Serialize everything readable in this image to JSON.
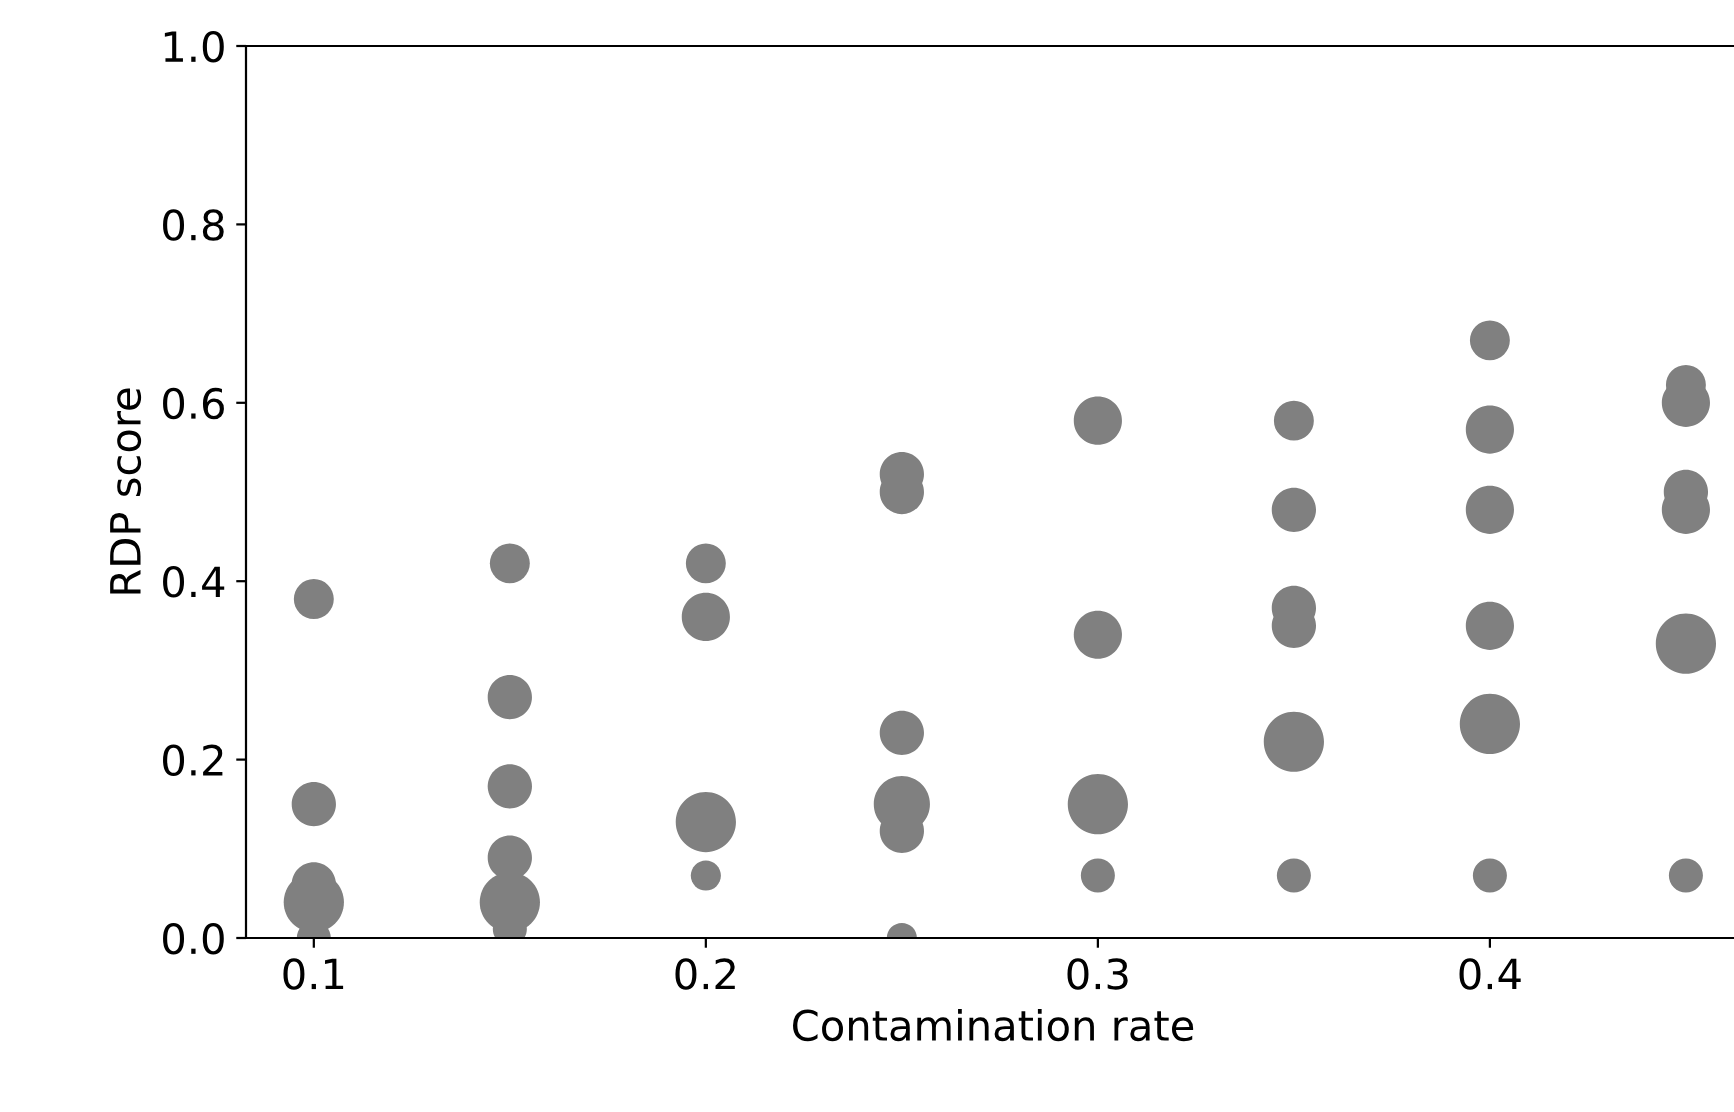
{
  "chart_data": {
    "type": "bubble",
    "xlabel": "Contamination rate",
    "ylabel": "RDP score",
    "xlim": [
      0.0827,
      0.4638
    ],
    "ylim": [
      0.0,
      1.0
    ],
    "xticks": [
      0.1,
      0.2,
      0.3,
      0.4
    ],
    "yticks": [
      {
        "value": 0,
        "label": "0.0"
      },
      0.2,
      0.4,
      0.6,
      0.8,
      {
        "value": 1,
        "label": "1.0"
      }
    ],
    "grid": false,
    "legend": false,
    "marker": "circle",
    "series": [
      {
        "color": "#808080",
        "x": [
          0.1,
          0.1,
          0.1,
          0.1,
          0.1,
          0.15,
          0.15,
          0.15,
          0.15,
          0.15,
          0.15,
          0.2,
          0.2,
          0.2,
          0.2,
          0.25,
          0.25,
          0.25,
          0.25,
          0.25,
          0.25,
          0.3,
          0.3,
          0.3,
          0.3,
          0.35,
          0.35,
          0.35,
          0.35,
          0.35,
          0.35,
          0.4,
          0.4,
          0.4,
          0.4,
          0.4,
          0.4,
          0.45,
          0.45,
          0.45,
          0.45,
          0.45,
          0.45
        ],
        "values": [
          0.38,
          0.15,
          0.06,
          0.04,
          0.0,
          0.42,
          0.27,
          0.17,
          0.09,
          0.04,
          0.01,
          0.42,
          0.36,
          0.13,
          0.07,
          0.52,
          0.5,
          0.23,
          0.15,
          0.12,
          0.0,
          0.58,
          0.34,
          0.15,
          0.07,
          0.58,
          0.48,
          0.37,
          0.35,
          0.22,
          0.07,
          0.67,
          0.57,
          0.48,
          0.35,
          0.24,
          0.07,
          0.62,
          0.6,
          0.5,
          0.48,
          0.33,
          0.07
        ],
        "sizes": [
          0.44,
          0.54,
          0.54,
          1,
          0.32,
          0.44,
          0.54,
          0.54,
          0.54,
          1,
          0.32,
          0.44,
          0.64,
          1,
          0.25,
          0.54,
          0.54,
          0.54,
          0.87,
          0.54,
          0.25,
          0.64,
          0.64,
          1,
          0.32,
          0.44,
          0.54,
          0.54,
          0.54,
          1,
          0.32,
          0.44,
          0.64,
          0.64,
          0.64,
          1,
          0.32,
          0.44,
          0.64,
          0.54,
          0.64,
          1,
          0.32
        ]
      }
    ]
  }
}
